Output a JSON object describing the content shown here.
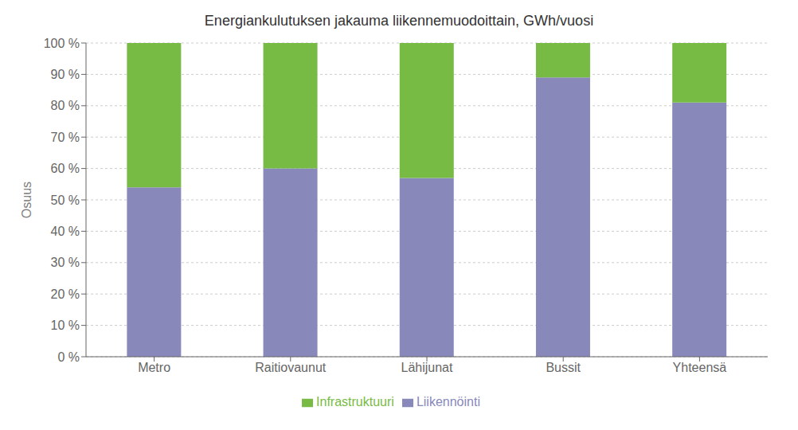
{
  "chart_data": {
    "type": "bar",
    "stacked": true,
    "title": "Energiankulutuksen jakauma liikennemuodoittain, GWh/vuosi",
    "categories": [
      "Metro",
      "Raitiovaunut",
      "Lähijunat",
      "Bussit",
      "Yhteensä"
    ],
    "series": [
      {
        "name": "Liikennöinti",
        "color": "#8888bb",
        "values": [
          0.54,
          0.6,
          0.57,
          0.89,
          0.81
        ]
      },
      {
        "name": "Infrastruktuuri",
        "color": "#77bb44",
        "values": [
          0.46,
          0.4,
          0.43,
          0.11,
          0.19
        ]
      }
    ],
    "ylabel": "Osuus",
    "ylim": [
      0,
      1.0
    ],
    "yticks": [
      {
        "value": 0.0,
        "label": "0 %"
      },
      {
        "value": 0.1,
        "label": "10 %"
      },
      {
        "value": 0.2,
        "label": "20 %"
      },
      {
        "value": 0.3,
        "label": "30 %"
      },
      {
        "value": 0.4,
        "label": "40 %"
      },
      {
        "value": 0.5,
        "label": "50 %"
      },
      {
        "value": 0.6,
        "label": "60 %"
      },
      {
        "value": 0.7,
        "label": "70 %"
      },
      {
        "value": 0.8,
        "label": "80 %"
      },
      {
        "value": 0.9,
        "label": "90 %"
      },
      {
        "value": 1.0,
        "label": "100 %"
      }
    ],
    "grid": true,
    "legend": "bottom"
  }
}
